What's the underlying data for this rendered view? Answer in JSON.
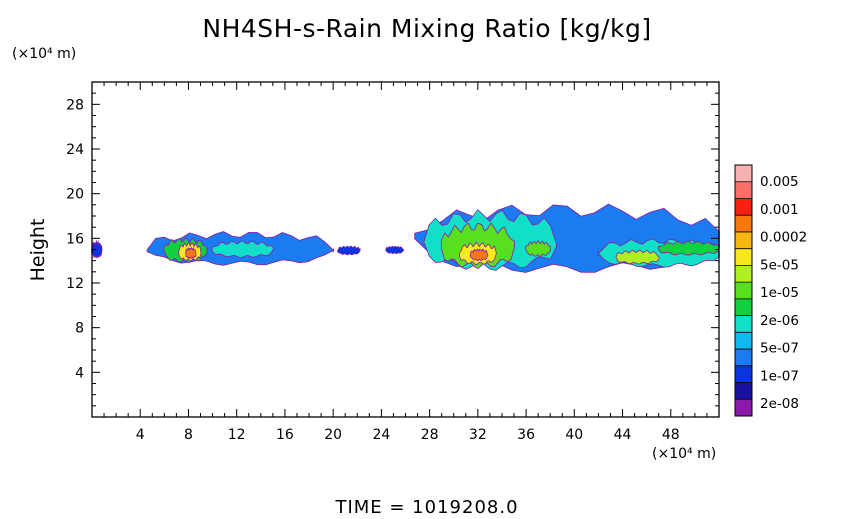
{
  "chart_data": {
    "type": "heatmap",
    "title": "NH4SH-s-Rain Mixing Ratio [kg/kg]",
    "ylabel": "Height",
    "xlabel": "",
    "x_unit": "(×10⁴ m)",
    "y_unit": "(×10⁴ m)",
    "footer": "TIME = 1019208.0",
    "xlim": [
      0,
      52
    ],
    "ylim": [
      0,
      30
    ],
    "x_ticks": [
      4,
      8,
      12,
      16,
      20,
      24,
      28,
      32,
      36,
      40,
      44,
      48
    ],
    "y_ticks": [
      4,
      8,
      12,
      16,
      20,
      24,
      28
    ],
    "colorbar": {
      "labels": [
        "0.005",
        "0.001",
        "0.0002",
        "5e-05",
        "1e-05",
        "2e-06",
        "5e-07",
        "1e-07",
        "2e-08"
      ],
      "colors": [
        "#8a1aa8",
        "#1a10a0",
        "#0a34e0",
        "#1a7cf0",
        "#10b8f0",
        "#10e0c8",
        "#10d040",
        "#58e020",
        "#b0f020",
        "#f8e820",
        "#f8b810",
        "#f87810",
        "#f82010",
        "#f87068",
        "#f8b0b0"
      ]
    },
    "regions": [
      {
        "x0": 0,
        "x1": 0.8,
        "ybot": 14.4,
        "ytop": 15.5,
        "level": 2
      },
      {
        "x0": 4.6,
        "x1": 20,
        "ybot": 13.8,
        "ytop": 16.3,
        "level": 3
      },
      {
        "x0": 6,
        "x1": 9.5,
        "ybot": 14,
        "ytop": 15.8,
        "level": 6
      },
      {
        "x0": 7.2,
        "x1": 9,
        "ybot": 14.1,
        "ytop": 15.4,
        "level": 9
      },
      {
        "x0": 7.8,
        "x1": 8.6,
        "ybot": 14.3,
        "ytop": 15,
        "level": 11
      },
      {
        "x0": 10,
        "x1": 15,
        "ybot": 14.4,
        "ytop": 15.6,
        "level": 5
      },
      {
        "x0": 20.4,
        "x1": 22.2,
        "ybot": 14.6,
        "ytop": 15.2,
        "level": 2
      },
      {
        "x0": 24.4,
        "x1": 25.8,
        "ybot": 14.7,
        "ytop": 15.2,
        "level": 2
      },
      {
        "x0": 26.8,
        "x1": 52,
        "ybot": 13.3,
        "ytop": 18.5,
        "level": 3
      },
      {
        "x0": 27.5,
        "x1": 38.5,
        "ybot": 13.5,
        "ytop": 18,
        "level": 5
      },
      {
        "x0": 29,
        "x1": 35,
        "ybot": 13.6,
        "ytop": 17,
        "level": 7
      },
      {
        "x0": 30.5,
        "x1": 33.5,
        "ybot": 13.8,
        "ytop": 15.4,
        "level": 9
      },
      {
        "x0": 31.4,
        "x1": 32.8,
        "ybot": 14.1,
        "ytop": 14.9,
        "level": 11
      },
      {
        "x0": 36,
        "x1": 38,
        "ybot": 14.5,
        "ytop": 15.6,
        "level": 7
      },
      {
        "x0": 42,
        "x1": 52,
        "ybot": 13.6,
        "ytop": 15.7,
        "level": 5
      },
      {
        "x0": 43.5,
        "x1": 47,
        "ybot": 13.8,
        "ytop": 14.8,
        "level": 8
      },
      {
        "x0": 47,
        "x1": 52,
        "ybot": 14.6,
        "ytop": 15.6,
        "level": 6
      }
    ]
  }
}
